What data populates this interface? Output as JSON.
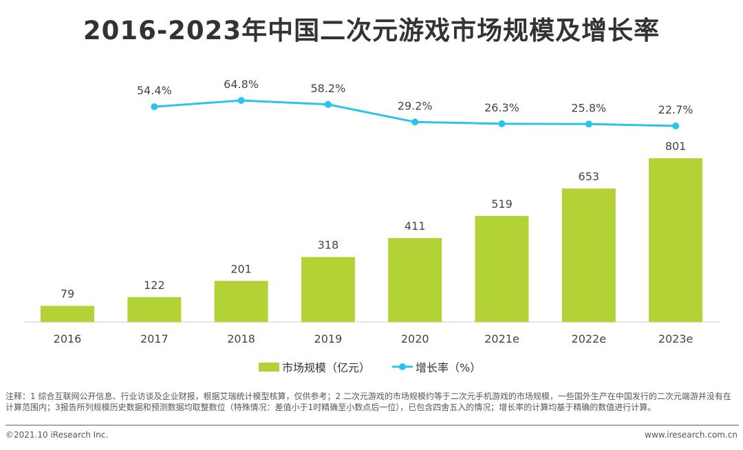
{
  "chart_data": {
    "type": "bar+line",
    "title": "2016-2023年中国二次元游戏市场规模及增长率",
    "categories": [
      "2016",
      "2017",
      "2018",
      "2019",
      "2020",
      "2021e",
      "2022e",
      "2023e"
    ],
    "series": [
      {
        "name": "市场规模（亿元）",
        "type": "bar",
        "color": "#b3d235",
        "values": [
          79,
          122,
          201,
          318,
          411,
          519,
          653,
          801
        ],
        "labels": [
          "79",
          "122",
          "201",
          "318",
          "411",
          "519",
          "653",
          "801"
        ]
      },
      {
        "name": "增长率（%）",
        "type": "line",
        "color": "#2ac3ee",
        "values": [
          null,
          54.4,
          64.8,
          58.2,
          29.2,
          26.3,
          25.8,
          22.7
        ],
        "labels": [
          "",
          "54.4%",
          "64.8%",
          "58.2%",
          "29.2%",
          "26.3%",
          "25.8%",
          "22.7%"
        ]
      }
    ],
    "legend_position": "bottom",
    "grid": false
  },
  "footer": {
    "note": "注释：1 综合互联网公开信息、行业访谈及企业财报，根据艾瑞统计模型核算，仅供参考；2 二次元游戏的市场规模约等于二次元手机游戏的市场规模，一些国外生产在中国发行的二次元端游并没有在计算范围内；3报告所列规模历史数据和预测数据均取整数位（特殊情况：差值小于1时精确至小数点后一位），已包含四舍五入的情况；增长率的计算均基于精确的数值进行计算。",
    "copyright": "©2021.10 iResearch Inc.",
    "website": "www.iresearch.com.cn"
  }
}
